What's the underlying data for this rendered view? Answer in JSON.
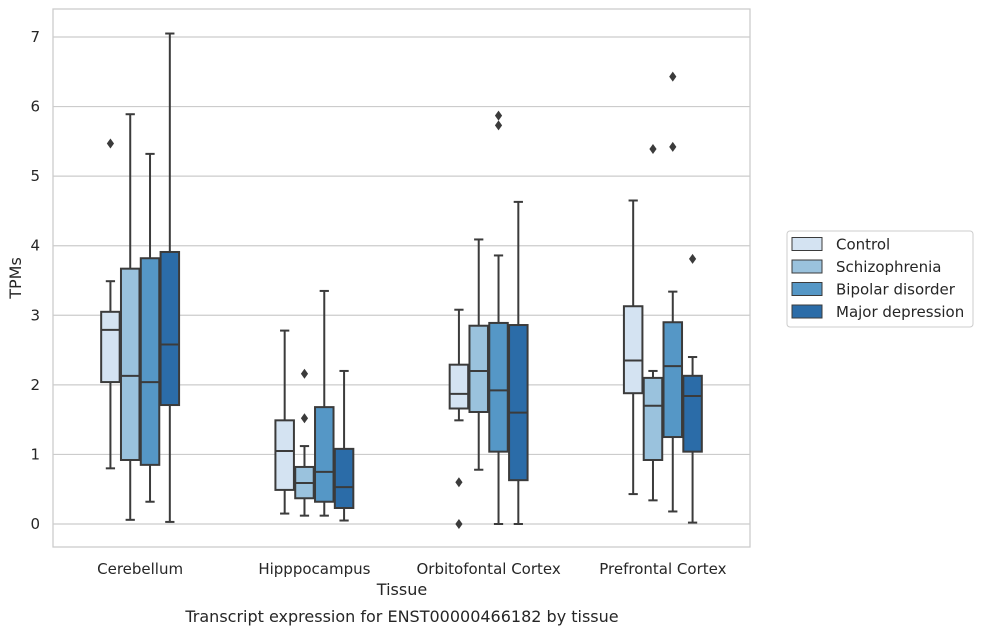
{
  "caption": "Transcript expression for ENST00000466182 by tissue",
  "chart_data": {
    "type": "boxplot",
    "xlabel": "Tissue",
    "ylabel": "TPMs",
    "ylim": [
      -0.35,
      7.4
    ],
    "yticks": [
      0,
      1,
      2,
      3,
      4,
      5,
      6,
      7
    ],
    "grid": true,
    "legend_position": "right",
    "categories": [
      "Cerebellum",
      "Hipppocampus",
      "Orbitofontal Cortex",
      "Prefrontal Cortex"
    ],
    "series": [
      {
        "name": "Control",
        "color": "#d4e3f2",
        "boxes": [
          {
            "whislo": 0.8,
            "q1": 2.04,
            "med": 2.79,
            "q3": 3.05,
            "whishi": 3.49,
            "fliers": [
              5.47
            ]
          },
          {
            "whislo": 0.15,
            "q1": 0.49,
            "med": 1.05,
            "q3": 1.49,
            "whishi": 2.78,
            "fliers": []
          },
          {
            "whislo": 1.49,
            "q1": 1.66,
            "med": 1.87,
            "q3": 2.29,
            "whishi": 3.08,
            "fliers": [
              0.6,
              0.0
            ]
          },
          {
            "whislo": 0.43,
            "q1": 1.88,
            "med": 2.35,
            "q3": 3.13,
            "whishi": 4.65,
            "fliers": []
          }
        ]
      },
      {
        "name": "Schizophrenia",
        "color": "#9ac2dd",
        "boxes": [
          {
            "whislo": 0.06,
            "q1": 0.92,
            "med": 2.13,
            "q3": 3.67,
            "whishi": 5.89,
            "fliers": []
          },
          {
            "whislo": 0.12,
            "q1": 0.37,
            "med": 0.59,
            "q3": 0.82,
            "whishi": 1.12,
            "fliers": [
              1.52,
              2.16
            ]
          },
          {
            "whislo": 0.78,
            "q1": 1.61,
            "med": 2.2,
            "q3": 2.85,
            "whishi": 4.09,
            "fliers": []
          },
          {
            "whislo": 0.34,
            "q1": 0.92,
            "med": 1.7,
            "q3": 2.1,
            "whishi": 2.2,
            "fliers": [
              5.39
            ]
          }
        ]
      },
      {
        "name": "Bipolar disorder",
        "color": "#5597c6",
        "boxes": [
          {
            "whislo": 0.32,
            "q1": 0.85,
            "med": 2.04,
            "q3": 3.82,
            "whishi": 5.32,
            "fliers": []
          },
          {
            "whislo": 0.12,
            "q1": 0.32,
            "med": 0.75,
            "q3": 1.68,
            "whishi": 3.35,
            "fliers": []
          },
          {
            "whislo": 0.0,
            "q1": 1.04,
            "med": 1.92,
            "q3": 2.89,
            "whishi": 3.86,
            "fliers": [
              5.73,
              5.87
            ]
          },
          {
            "whislo": 0.18,
            "q1": 1.25,
            "med": 2.27,
            "q3": 2.9,
            "whishi": 3.34,
            "fliers": [
              5.42,
              6.43
            ]
          }
        ]
      },
      {
        "name": "Major depression",
        "color": "#2b6ca8",
        "boxes": [
          {
            "whislo": 0.03,
            "q1": 1.71,
            "med": 2.58,
            "q3": 3.91,
            "whishi": 7.05,
            "fliers": []
          },
          {
            "whislo": 0.05,
            "q1": 0.23,
            "med": 0.53,
            "q3": 1.08,
            "whishi": 2.2,
            "fliers": []
          },
          {
            "whislo": 0.0,
            "q1": 0.63,
            "med": 1.6,
            "q3": 2.86,
            "whishi": 4.63,
            "fliers": []
          },
          {
            "whislo": 0.02,
            "q1": 1.04,
            "med": 1.84,
            "q3": 2.13,
            "whishi": 2.4,
            "fliers": [
              3.81
            ]
          }
        ]
      }
    ]
  }
}
